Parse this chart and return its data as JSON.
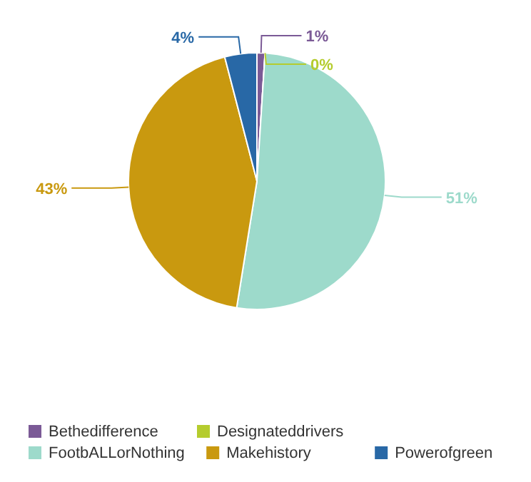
{
  "chart_data": {
    "type": "pie",
    "categories": [
      "Bethedifference",
      "Designateddrivers",
      "FootbALLorNothing",
      "Makehistory",
      "Powerofgreen"
    ],
    "values": [
      1,
      0,
      51,
      43,
      4
    ],
    "value_labels": [
      "1%",
      "0%",
      "51%",
      "43%",
      "4%"
    ],
    "colors": [
      "#7b5a96",
      "#b5cc2e",
      "#9ddacb",
      "#c9990f",
      "#2868a6"
    ],
    "legend": "bottom"
  }
}
